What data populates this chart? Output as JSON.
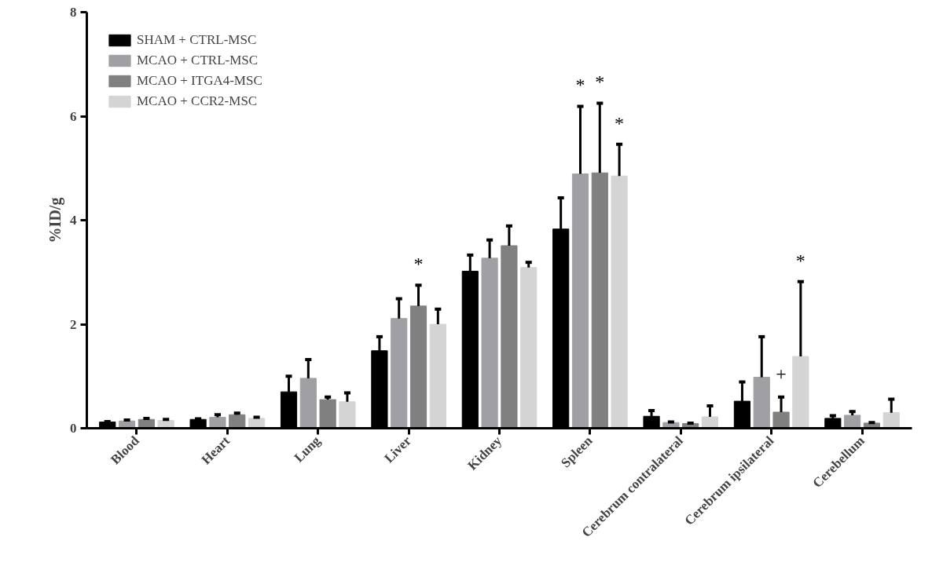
{
  "chart_data": {
    "type": "bar",
    "ylabel": "%ID/g",
    "categories": [
      "Blood",
      "Heart",
      "Lung",
      "Liver",
      "Kidney",
      "Spleen",
      "Cerebrum contralateral",
      "Cerebrum ipsilateral",
      "Cerebellum"
    ],
    "series": [
      {
        "name": "SHAM + CTRL-MSC",
        "color": "#000000",
        "values": [
          0.12,
          0.17,
          0.7,
          1.49,
          3.02,
          3.83,
          0.23,
          0.52,
          0.19
        ],
        "errors": [
          [
            0.12,
            0.13
          ],
          [
            0.17,
            0.18
          ],
          [
            0.7,
            1.0
          ],
          [
            1.49,
            1.76
          ],
          [
            3.02,
            3.33
          ],
          [
            3.83,
            4.43
          ],
          [
            0.23,
            0.34
          ],
          [
            0.52,
            0.89
          ],
          [
            0.19,
            0.24
          ]
        ]
      },
      {
        "name": "MCAO + CTRL-MSC",
        "color": "#a0a0a4",
        "values": [
          0.14,
          0.21,
          0.96,
          2.11,
          3.27,
          4.89,
          0.11,
          0.98,
          0.25
        ],
        "errors": [
          [
            0.14,
            0.16
          ],
          [
            0.21,
            0.26
          ],
          [
            0.96,
            1.32
          ],
          [
            2.11,
            2.49
          ],
          [
            3.27,
            3.62
          ],
          [
            4.89,
            6.19
          ],
          [
            0.11,
            0.12
          ],
          [
            0.98,
            1.76
          ],
          [
            0.25,
            0.32
          ]
        ]
      },
      {
        "name": "MCAO + ITGA4-MSC",
        "color": "#808080",
        "values": [
          0.17,
          0.26,
          0.55,
          2.35,
          3.51,
          4.91,
          0.09,
          0.31,
          0.1
        ],
        "errors": [
          [
            0.17,
            0.19
          ],
          [
            0.26,
            0.29
          ],
          [
            0.55,
            0.6
          ],
          [
            2.35,
            2.75
          ],
          [
            3.51,
            3.89
          ],
          [
            4.91,
            6.25
          ],
          [
            0.09,
            0.1
          ],
          [
            0.31,
            0.6
          ],
          [
            0.1,
            0.11
          ]
        ]
      },
      {
        "name": "MCAO + CCR2-MSC",
        "color": "#d4d4d4",
        "values": [
          0.15,
          0.19,
          0.51,
          2.0,
          3.09,
          4.85,
          0.22,
          1.38,
          0.3
        ],
        "errors": [
          [
            0.15,
            0.17
          ],
          [
            0.19,
            0.21
          ],
          [
            0.51,
            0.68
          ],
          [
            2.0,
            2.29
          ],
          [
            3.09,
            3.19
          ],
          [
            4.85,
            5.46
          ],
          [
            0.22,
            0.43
          ],
          [
            1.38,
            2.82
          ],
          [
            0.3,
            0.56
          ]
        ]
      }
    ],
    "ylim": [
      0,
      8
    ],
    "yticks": [
      0,
      2,
      4,
      6,
      8
    ],
    "grid": false,
    "legend": "top left",
    "annotations": [
      "*",
      "*",
      "*",
      "*",
      "+",
      "*"
    ]
  }
}
